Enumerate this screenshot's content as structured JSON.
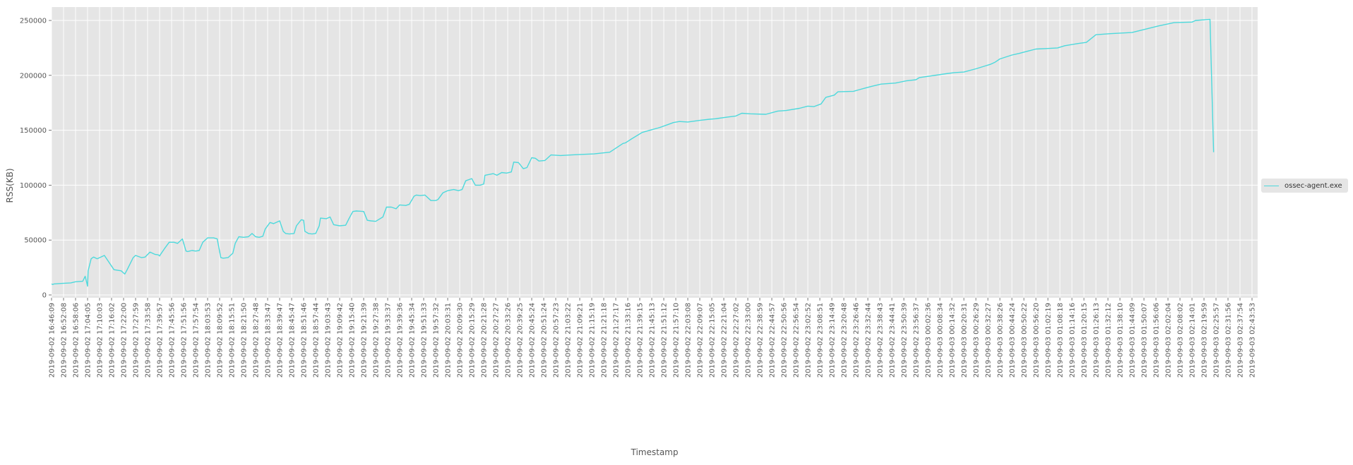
{
  "chart_data": {
    "type": "line",
    "title": "",
    "xlabel": "Timestamp",
    "ylabel": "RSS(KB)",
    "ylim": [
      -6000,
      262000
    ],
    "yticks": [
      0,
      50000,
      100000,
      150000,
      200000,
      250000
    ],
    "ytick_labels": [
      "0",
      "50000",
      "100000",
      "150000",
      "200000",
      "250000"
    ],
    "grid": true,
    "legend_position": "right",
    "legend": [
      "ossec-agent.exe"
    ],
    "colors": {
      "line": "#4dd9dc",
      "plot_bg": "#e5e5e5",
      "grid": "#ffffff",
      "text": "#555555"
    },
    "xtick_labels": [
      "2019-09-02 16:46:09",
      "2019-09-02 16:52:08",
      "2019-09-02 16:58:06",
      "2019-09-02 17:04:05",
      "2019-09-02 17:10:03",
      "2019-09-02 17:16:02",
      "2019-09-02 17:22:00",
      "2019-09-02 17:27:59",
      "2019-09-02 17:33:58",
      "2019-09-02 17:39:57",
      "2019-09-02 17:45:56",
      "2019-09-02 17:51:56",
      "2019-09-02 17:57:54",
      "2019-09-02 18:03:53",
      "2019-09-02 18:09:52",
      "2019-09-02 18:15:51",
      "2019-09-02 18:21:50",
      "2019-09-02 18:27:48",
      "2019-09-02 18:33:47",
      "2019-09-02 18:39:47",
      "2019-09-02 18:45:47",
      "2019-09-02 18:51:46",
      "2019-09-02 18:57:44",
      "2019-09-02 19:03:43",
      "2019-09-02 19:09:42",
      "2019-09-02 19:15:40",
      "2019-09-02 19:21:39",
      "2019-09-02 19:27:38",
      "2019-09-02 19:33:37",
      "2019-09-02 19:39:36",
      "2019-09-02 19:45:34",
      "2019-09-02 19:51:33",
      "2019-09-02 19:57:32",
      "2019-09-02 20:03:31",
      "2019-09-02 20:09:30",
      "2019-09-02 20:15:29",
      "2019-09-02 20:21:28",
      "2019-09-02 20:27:27",
      "2019-09-02 20:33:26",
      "2019-09-02 20:39:25",
      "2019-09-02 20:45:24",
      "2019-09-02 20:51:24",
      "2019-09-02 20:57:23",
      "2019-09-02 21:03:22",
      "2019-09-02 21:09:21",
      "2019-09-02 21:15:19",
      "2019-09-02 21:21:18",
      "2019-09-02 21:27:17",
      "2019-09-02 21:33:16",
      "2019-09-02 21:39:15",
      "2019-09-02 21:45:13",
      "2019-09-02 21:51:12",
      "2019-09-02 21:57:10",
      "2019-09-02 22:03:08",
      "2019-09-02 22:09:07",
      "2019-09-02 22:15:05",
      "2019-09-02 22:21:04",
      "2019-09-02 22:27:02",
      "2019-09-02 22:33:00",
      "2019-09-02 22:38:59",
      "2019-09-02 22:44:57",
      "2019-09-02 22:50:56",
      "2019-09-02 22:56:54",
      "2019-09-02 23:02:52",
      "2019-09-02 23:08:51",
      "2019-09-02 23:14:49",
      "2019-09-02 23:20:48",
      "2019-09-02 23:26:46",
      "2019-09-02 23:32:44",
      "2019-09-02 23:38:43",
      "2019-09-02 23:44:41",
      "2019-09-02 23:50:39",
      "2019-09-02 23:56:37",
      "2019-09-03 00:02:36",
      "2019-09-03 00:08:34",
      "2019-09-03 00:14:32",
      "2019-09-03 00:20:31",
      "2019-09-03 00:26:29",
      "2019-09-03 00:32:27",
      "2019-09-03 00:38:26",
      "2019-09-03 00:44:24",
      "2019-09-03 00:50:22",
      "2019-09-03 00:56:20",
      "2019-09-03 01:02:19",
      "2019-09-03 01:08:18",
      "2019-09-03 01:14:16",
      "2019-09-03 01:20:15",
      "2019-09-03 01:26:13",
      "2019-09-03 01:32:12",
      "2019-09-03 01:38:10",
      "2019-09-03 01:44:09",
      "2019-09-03 01:50:07",
      "2019-09-03 01:56:06",
      "2019-09-03 02:02:04",
      "2019-09-03 02:08:02",
      "2019-09-03 02:14:01",
      "2019-09-03 02:19:59",
      "2019-09-03 02:25:57",
      "2019-09-03 02:31:56",
      "2019-09-03 02:37:54",
      "2019-09-03 02:43:53"
    ],
    "series": [
      {
        "name": "ossec-agent.exe",
        "x_tick_index": [
          0,
          0.1,
          0.2,
          0.8,
          1.6,
          2.0,
          2.6,
          2.8,
          3.0,
          3.05,
          3.3,
          3.5,
          3.8,
          4.4,
          5.2,
          5.8,
          6.0,
          6.1,
          6.3,
          6.8,
          7.0,
          7.5,
          7.8,
          8.2,
          8.6,
          8.9,
          9.0,
          9.05,
          9.4,
          9.8,
          10.2,
          10.5,
          10.9,
          11.2,
          11.35,
          11.5,
          11.7,
          12.0,
          12.3,
          12.6,
          13.0,
          13.5,
          13.8,
          14.1,
          14.3,
          14.7,
          15.1,
          15.3,
          15.5,
          15.6,
          16.0,
          16.4,
          16.7,
          17.0,
          17.3,
          17.6,
          17.8,
          18.2,
          18.5,
          19.0,
          19.3,
          19.5,
          19.8,
          20.2,
          20.4,
          20.8,
          21.0,
          21.1,
          21.4,
          21.7,
          22.0,
          22.3,
          22.4,
          22.9,
          23.2,
          23.5,
          24.0,
          24.5,
          24.8,
          25.1,
          25.4,
          26.0,
          26.3,
          26.6,
          27.0,
          27.6,
          27.9,
          28.3,
          28.7,
          29.0,
          29.5,
          29.8,
          30.2,
          30.4,
          30.7,
          31.1,
          31.6,
          32.0,
          32.2,
          32.6,
          33.0,
          33.5,
          33.9,
          34.2,
          34.5,
          35.0,
          35.3,
          35.7,
          36.0,
          36.1,
          36.8,
          37.1,
          37.5,
          37.9,
          38.3,
          38.5,
          38.9,
          39.3,
          39.6,
          40.0,
          40.3,
          40.6,
          41.1,
          41.6,
          42.4,
          43.3,
          44.2,
          45.2,
          46.5,
          46.7,
          47.6,
          47.8,
          48.3,
          49.2,
          50.0,
          50.5,
          50.8,
          51.3,
          51.8,
          52.3,
          53.0,
          54.0,
          54.8,
          55.3,
          56.3,
          57.0,
          57.5,
          58.2,
          59.5,
          60.5,
          61.2,
          62.3,
          63.0,
          63.5,
          64.1,
          64.5,
          65.2,
          65.5,
          66.8,
          67.3,
          67.8,
          68.3,
          69.1,
          70.3,
          71.2,
          72.0,
          72.3,
          74.5,
          75.2,
          76.0,
          77.0,
          78.2,
          78.6,
          79.0,
          80.0,
          80.6,
          81.3,
          82.0,
          83.0,
          83.8,
          84.4,
          85.5,
          86.2,
          87.0,
          88.2,
          90.0,
          92.2,
          93.5,
          95.0,
          95.3,
          96.5,
          96.8,
          97.8,
          98.1,
          99.4,
          99.6,
          100.5,
          100.5
        ],
        "values": [
          10000,
          9500,
          10000,
          10500,
          11000,
          12000,
          12500,
          17000,
          8000,
          22000,
          33000,
          34500,
          33000,
          36000,
          23000,
          22000,
          20000,
          19000,
          23000,
          34000,
          36000,
          34000,
          34500,
          39000,
          37000,
          36500,
          35500,
          36500,
          42000,
          48000,
          48000,
          47000,
          51000,
          40000,
          39500,
          40000,
          40500,
          40000,
          40500,
          48000,
          52000,
          52000,
          51000,
          34000,
          33500,
          34000,
          38000,
          47000,
          51000,
          53000,
          52500,
          53000,
          56000,
          53000,
          52500,
          53500,
          60000,
          66000,
          65000,
          67500,
          58000,
          56000,
          55500,
          56000,
          63000,
          68500,
          68000,
          58000,
          56000,
          55500,
          56000,
          63000,
          70000,
          69500,
          71000,
          64000,
          63000,
          63500,
          70000,
          76000,
          76500,
          76000,
          68000,
          67500,
          67000,
          71000,
          80000,
          80000,
          78500,
          82000,
          81500,
          82500,
          90000,
          91000,
          90500,
          91000,
          86000,
          86000,
          87000,
          93000,
          95000,
          96000,
          95000,
          96000,
          104000,
          106000,
          100000,
          100000,
          101000,
          109000,
          110500,
          109000,
          111500,
          111000,
          112000,
          121000,
          120500,
          115000,
          116000,
          125000,
          124500,
          122000,
          122500,
          127500,
          127000,
          127500,
          128000,
          128500,
          130000,
          131500,
          138000,
          138500,
          142000,
          148000,
          150500,
          152000,
          153000,
          155000,
          157000,
          158000,
          157500,
          159000,
          160000,
          160500,
          162000,
          163000,
          165500,
          165000,
          164500,
          167500,
          168000,
          170000,
          172000,
          171500,
          174000,
          180000,
          182000,
          185000,
          185500,
          187000,
          188500,
          190000,
          192000,
          193000,
          195000,
          196000,
          198000,
          201500,
          202500,
          203000,
          206000,
          210000,
          212000,
          215000,
          218500,
          220000,
          222000,
          224000,
          224500,
          225000,
          227000,
          229000,
          230000,
          237000,
          238000,
          239000,
          245000,
          248000,
          248500,
          250000,
          251000,
          130000
        ],
        "color": "#4dd9dc"
      }
    ]
  },
  "legend": {
    "label": "ossec-agent.exe"
  },
  "axes": {
    "xlabel": "Timestamp",
    "ylabel": "RSS(KB)"
  }
}
